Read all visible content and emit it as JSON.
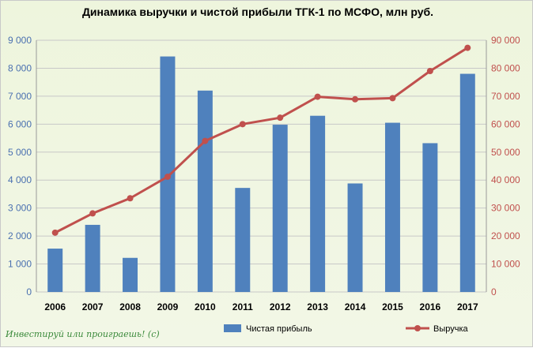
{
  "chart_data": {
    "type": "bar+line",
    "title": "Динамика выручки и чистой прибыли ТГК-1 по МСФО, млн руб.",
    "categories": [
      "2006",
      "2007",
      "2008",
      "2009",
      "2010",
      "2011",
      "2012",
      "2013",
      "2014",
      "2015",
      "2016",
      "2017"
    ],
    "series": [
      {
        "name": "Чистая прибыль",
        "type": "bar",
        "axis": "left",
        "color": "#4f81bd",
        "values": [
          1550,
          2400,
          1220,
          8420,
          7200,
          3720,
          5980,
          6300,
          3880,
          6050,
          5320,
          7800
        ]
      },
      {
        "name": "Выручка",
        "type": "line",
        "axis": "right",
        "color": "#c0504d",
        "values": [
          21200,
          28100,
          33500,
          41200,
          54000,
          60000,
          62300,
          69800,
          68900,
          69300,
          79000,
          87300
        ]
      }
    ],
    "y_left": {
      "min": 0,
      "max": 9000,
      "tick_labels": [
        "0",
        "1 000",
        "2 000",
        "3 000",
        "4 000",
        "5 000",
        "6 000",
        "7 000",
        "8 000",
        "9 000"
      ]
    },
    "y_right": {
      "min": 0,
      "max": 90000,
      "tick_labels": [
        "0",
        "10 000",
        "20 000",
        "30 000",
        "40 000",
        "50 000",
        "60 000",
        "70 000",
        "80 000",
        "90 000"
      ]
    },
    "grid": true,
    "legend_position": "bottom"
  },
  "watermark": "Инвестируй или проиграешь! (с)"
}
